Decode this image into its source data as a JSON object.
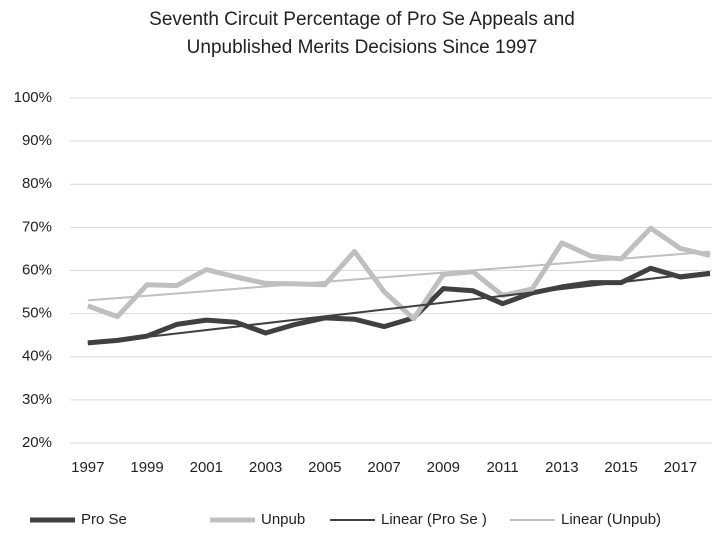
{
  "chart_data": {
    "type": "line",
    "title": [
      "Seventh Circuit Percentage of Pro Se Appeals and",
      "Unpublished Merits Decisions Since 1997"
    ],
    "x": [
      1997,
      1998,
      1999,
      2000,
      2001,
      2002,
      2003,
      2004,
      2005,
      2006,
      2007,
      2008,
      2009,
      2010,
      2011,
      2012,
      2013,
      2014,
      2015,
      2016,
      2017,
      2018
    ],
    "xlim": [
      1996.5,
      2018
    ],
    "xticks": [
      1997,
      1999,
      2001,
      2003,
      2005,
      2007,
      2009,
      2011,
      2013,
      2015,
      2017
    ],
    "ylim": [
      20,
      100
    ],
    "yticks": [
      {
        "value": 20,
        "label": "20%"
      },
      {
        "value": 30,
        "label": "30%"
      },
      {
        "value": 40,
        "label": "40%"
      },
      {
        "value": 50,
        "label": "50%"
      },
      {
        "value": 60,
        "label": "60%"
      },
      {
        "value": 70,
        "label": "70%"
      },
      {
        "value": 80,
        "label": "80%"
      },
      {
        "value": 90,
        "label": "90%"
      },
      {
        "value": 100,
        "label": "100%"
      }
    ],
    "grid": true,
    "legend": "bottom",
    "series": [
      {
        "name": "Pro Se",
        "color": "#404040",
        "values": [
          43.2,
          43.8,
          44.8,
          47.5,
          48.5,
          48.0,
          45.5,
          47.5,
          49.0,
          48.7,
          47.0,
          49.0,
          55.8,
          55.3,
          52.3,
          54.8,
          56.2,
          57.2,
          57.2,
          60.5,
          58.5,
          59.3
        ],
        "trendline": {
          "name": "Linear (Pro Se )",
          "color": "#404040"
        }
      },
      {
        "name": "Unpub",
        "color": "#bfbfbf",
        "values": [
          51.8,
          49.3,
          56.7,
          56.5,
          60.2,
          58.5,
          57.0,
          56.9,
          56.7,
          64.4,
          55.1,
          48.8,
          59.1,
          59.7,
          54.2,
          55.7,
          66.4,
          63.3,
          62.7,
          69.8,
          65.1,
          63.5
        ],
        "trendline": {
          "name": "Linear (Unpub)",
          "color": "#bfbfbf"
        }
      }
    ]
  }
}
